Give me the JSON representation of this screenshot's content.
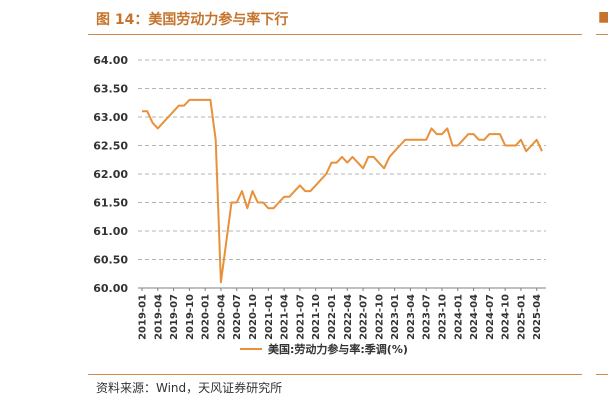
{
  "figure": {
    "title": "图 14：美国劳动力参与率下行",
    "source": "资料来源：Wind，天风证券研究所"
  },
  "chart_data": {
    "type": "line",
    "title": "",
    "xlabel": "",
    "ylabel": "",
    "ylim": [
      60.0,
      64.0
    ],
    "yticks": [
      "64.00",
      "63.50",
      "63.00",
      "62.50",
      "62.00",
      "61.50",
      "61.00",
      "60.50",
      "60.00"
    ],
    "xticks": [
      "2019-01",
      "2019-04",
      "2019-07",
      "2019-10",
      "2020-01",
      "2020-04",
      "2020-07",
      "2020-10",
      "2021-01",
      "2021-04",
      "2021-07",
      "2021-10",
      "2022-01",
      "2022-04",
      "2022-07",
      "2022-10",
      "2023-01",
      "2023-04",
      "2023-07",
      "2023-10",
      "2024-01",
      "2024-04",
      "2024-07",
      "2024-10",
      "2025-01",
      "2025-04"
    ],
    "grid": true,
    "legend_position": "bottom",
    "line_color": "#e8913a",
    "series": [
      {
        "name": "美国:劳动力参与率:季调(%)",
        "x": [
          "2019-01",
          "2019-02",
          "2019-03",
          "2019-04",
          "2019-05",
          "2019-06",
          "2019-07",
          "2019-08",
          "2019-09",
          "2019-10",
          "2019-11",
          "2019-12",
          "2020-01",
          "2020-02",
          "2020-03",
          "2020-04",
          "2020-05",
          "2020-06",
          "2020-07",
          "2020-08",
          "2020-09",
          "2020-10",
          "2020-11",
          "2020-12",
          "2021-01",
          "2021-02",
          "2021-03",
          "2021-04",
          "2021-05",
          "2021-06",
          "2021-07",
          "2021-08",
          "2021-09",
          "2021-10",
          "2021-11",
          "2021-12",
          "2022-01",
          "2022-02",
          "2022-03",
          "2022-04",
          "2022-05",
          "2022-06",
          "2022-07",
          "2022-08",
          "2022-09",
          "2022-10",
          "2022-11",
          "2022-12",
          "2023-01",
          "2023-02",
          "2023-03",
          "2023-04",
          "2023-05",
          "2023-06",
          "2023-07",
          "2023-08",
          "2023-09",
          "2023-10",
          "2023-11",
          "2023-12",
          "2024-01",
          "2024-02",
          "2024-03",
          "2024-04",
          "2024-05",
          "2024-06",
          "2024-07",
          "2024-08",
          "2024-09",
          "2024-10",
          "2024-11",
          "2024-12",
          "2025-01",
          "2025-02",
          "2025-03",
          "2025-04",
          "2025-05"
        ],
        "values": [
          63.1,
          63.1,
          62.9,
          62.8,
          62.9,
          63.0,
          63.1,
          63.2,
          63.2,
          63.3,
          63.3,
          63.3,
          63.3,
          63.3,
          62.6,
          60.1,
          60.8,
          61.5,
          61.5,
          61.7,
          61.4,
          61.7,
          61.5,
          61.5,
          61.4,
          61.4,
          61.5,
          61.6,
          61.6,
          61.7,
          61.8,
          61.7,
          61.7,
          61.8,
          61.9,
          62.0,
          62.2,
          62.2,
          62.3,
          62.2,
          62.3,
          62.2,
          62.1,
          62.3,
          62.3,
          62.2,
          62.1,
          62.3,
          62.4,
          62.5,
          62.6,
          62.6,
          62.6,
          62.6,
          62.6,
          62.8,
          62.7,
          62.7,
          62.8,
          62.5,
          62.5,
          62.6,
          62.7,
          62.7,
          62.6,
          62.6,
          62.7,
          62.7,
          62.7,
          62.5,
          62.5,
          62.5,
          62.6,
          62.4,
          62.5,
          62.6,
          62.4
        ]
      }
    ]
  }
}
